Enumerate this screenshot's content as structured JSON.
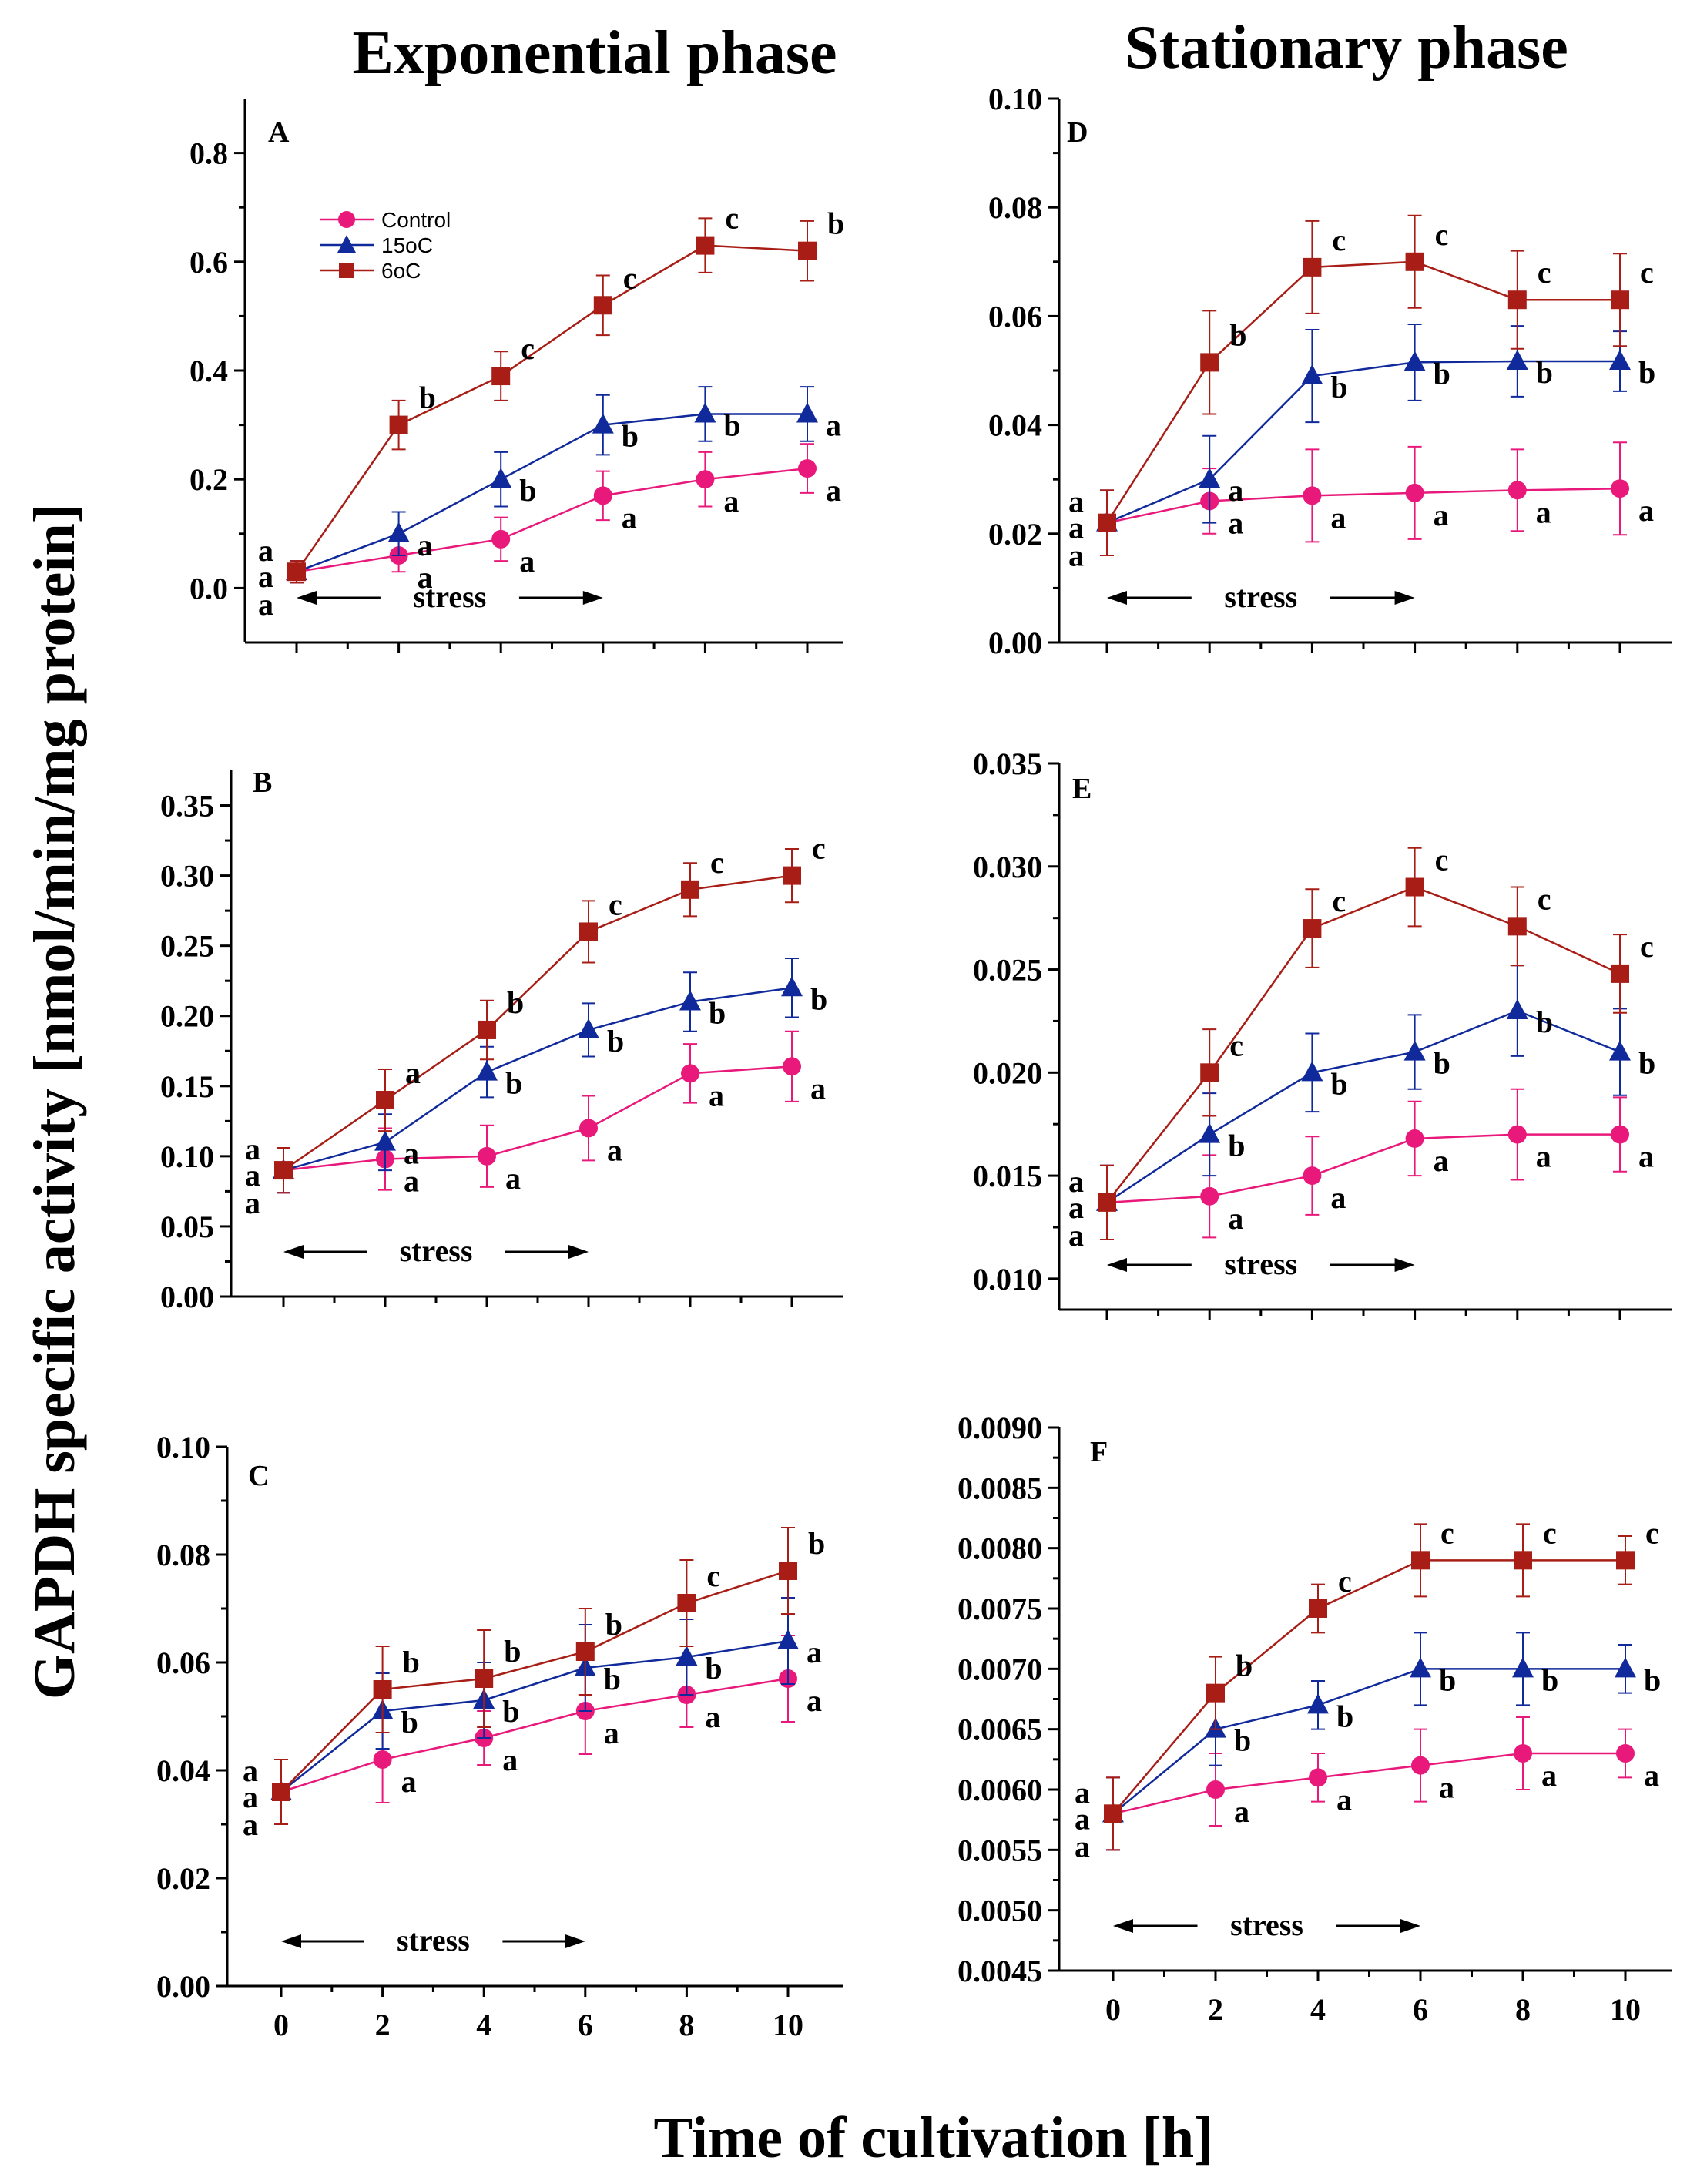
{
  "titles": {
    "left": "Exponential phase",
    "right": "Stationary phase",
    "ylabel": "GAPDH specific activity [nmol/min/mg protein]",
    "xlabel": "Time of cultivation [h]"
  },
  "stress_label": "stress",
  "chart_data": [
    {
      "id": "A",
      "type": "line",
      "letter": "A",
      "x": [
        0,
        2,
        4,
        6,
        8,
        10
      ],
      "ylim": [
        -0.1,
        0.9
      ],
      "yticks": [
        0.0,
        0.2,
        0.4,
        0.6,
        0.8
      ],
      "ytick_labels": [
        "0.0",
        "0.2",
        "0.4",
        "0.6",
        "0.8"
      ],
      "xtick_labels": [],
      "legend": [
        "Control",
        "15oC",
        "6oC"
      ],
      "stress_arrow": [
        0,
        6
      ],
      "series": [
        {
          "name": "Control",
          "values": [
            0.03,
            0.06,
            0.09,
            0.17,
            0.2,
            0.22
          ],
          "errors": [
            0.02,
            0.03,
            0.04,
            0.045,
            0.05,
            0.045
          ],
          "labels": [
            "a",
            "a",
            "a",
            "a",
            "a",
            "a"
          ]
        },
        {
          "name": "15oC",
          "values": [
            0.03,
            0.1,
            0.2,
            0.3,
            0.32,
            0.32
          ],
          "errors": [
            0.02,
            0.04,
            0.05,
            0.055,
            0.05,
            0.05
          ],
          "labels": [
            "a",
            "a",
            "b",
            "b",
            "b",
            "a"
          ]
        },
        {
          "name": "6oC",
          "values": [
            0.03,
            0.3,
            0.39,
            0.52,
            0.63,
            0.62
          ],
          "errors": [
            0.02,
            0.045,
            0.045,
            0.055,
            0.05,
            0.055
          ],
          "labels": [
            "a",
            "b",
            "c",
            "c",
            "c",
            "b"
          ]
        }
      ]
    },
    {
      "id": "B",
      "type": "line",
      "letter": "B",
      "x": [
        0,
        2,
        4,
        6,
        8,
        10
      ],
      "ylim": [
        0.0,
        0.375
      ],
      "yticks": [
        0.0,
        0.05,
        0.1,
        0.15,
        0.2,
        0.25,
        0.3,
        0.35
      ],
      "ytick_labels": [
        "0.00",
        "0.05",
        "0.10",
        "0.15",
        "0.20",
        "0.25",
        "0.30",
        "0.35"
      ],
      "xtick_labels": [],
      "stress_arrow": [
        0,
        6
      ],
      "series": [
        {
          "name": "Control",
          "values": [
            0.09,
            0.098,
            0.1,
            0.12,
            0.159,
            0.164
          ],
          "errors": [
            0.016,
            0.022,
            0.022,
            0.023,
            0.021,
            0.025
          ],
          "labels": [
            "a",
            "a",
            "a",
            "a",
            "a",
            "a"
          ]
        },
        {
          "name": "15oC",
          "values": [
            0.09,
            0.11,
            0.16,
            0.19,
            0.21,
            0.22
          ],
          "errors": [
            0.016,
            0.02,
            0.018,
            0.019,
            0.021,
            0.021
          ],
          "labels": [
            "a",
            "a",
            "b",
            "b",
            "b",
            "b"
          ]
        },
        {
          "name": "6oC",
          "values": [
            0.09,
            0.14,
            0.19,
            0.26,
            0.29,
            0.3
          ],
          "errors": [
            0.016,
            0.022,
            0.021,
            0.022,
            0.019,
            0.019
          ],
          "labels": [
            "a",
            "a",
            "b",
            "c",
            "c",
            "c"
          ]
        }
      ]
    },
    {
      "id": "C",
      "type": "line",
      "letter": "C",
      "x": [
        0,
        2,
        4,
        6,
        8,
        10
      ],
      "ylim": [
        0.0,
        0.1
      ],
      "yticks": [
        0.0,
        0.02,
        0.04,
        0.06,
        0.08,
        0.1
      ],
      "ytick_labels": [
        "0.00",
        "0.02",
        "0.04",
        "0.06",
        "0.08",
        "0.10"
      ],
      "xtick_labels": [
        "0",
        "2",
        "4",
        "6",
        "8",
        "10"
      ],
      "stress_arrow": [
        0,
        6
      ],
      "series": [
        {
          "name": "Control",
          "values": [
            0.036,
            0.042,
            0.046,
            0.051,
            0.054,
            0.057
          ],
          "errors": [
            0.006,
            0.008,
            0.005,
            0.008,
            0.006,
            0.008
          ],
          "labels": [
            "a",
            "a",
            "a",
            "a",
            "a",
            "a"
          ]
        },
        {
          "name": "15oC",
          "values": [
            0.036,
            0.051,
            0.053,
            0.059,
            0.061,
            0.064
          ],
          "errors": [
            0.006,
            0.007,
            0.007,
            0.008,
            0.007,
            0.008
          ],
          "labels": [
            "a",
            "b",
            "b",
            "b",
            "b",
            "a"
          ]
        },
        {
          "name": "6oC",
          "values": [
            0.036,
            0.055,
            0.057,
            0.062,
            0.071,
            0.077
          ],
          "errors": [
            0.006,
            0.008,
            0.009,
            0.008,
            0.008,
            0.008
          ],
          "labels": [
            "a",
            "b",
            "b",
            "b",
            "c",
            "b"
          ]
        }
      ]
    },
    {
      "id": "D",
      "type": "line",
      "letter": "D",
      "x": [
        0,
        2,
        4,
        6,
        8,
        10
      ],
      "ylim": [
        0.0,
        0.1
      ],
      "yticks": [
        0.0,
        0.02,
        0.04,
        0.06,
        0.08,
        0.1
      ],
      "ytick_labels": [
        "0.00",
        "0.02",
        "0.04",
        "0.06",
        "0.08",
        "0.10"
      ],
      "xtick_labels": [],
      "stress_arrow": [
        0,
        6
      ],
      "series": [
        {
          "name": "Control",
          "values": [
            0.022,
            0.026,
            0.027,
            0.0275,
            0.028,
            0.0283
          ],
          "errors": [
            0.006,
            0.006,
            0.0085,
            0.0085,
            0.0075,
            0.0085
          ],
          "labels": [
            "a",
            "a",
            "a",
            "a",
            "a",
            "a"
          ]
        },
        {
          "name": "15oC",
          "values": [
            0.022,
            0.03,
            0.049,
            0.0515,
            0.0517,
            0.0517
          ],
          "errors": [
            0.006,
            0.008,
            0.0085,
            0.007,
            0.0065,
            0.0055
          ],
          "labels": [
            "a",
            "a",
            "b",
            "b",
            "b",
            "b"
          ]
        },
        {
          "name": "6oC",
          "values": [
            0.022,
            0.0515,
            0.069,
            0.07,
            0.063,
            0.063
          ],
          "errors": [
            0.006,
            0.0095,
            0.0085,
            0.0085,
            0.009,
            0.0085
          ],
          "labels": [
            "a",
            "b",
            "c",
            "c",
            "c",
            "c"
          ]
        }
      ]
    },
    {
      "id": "E",
      "type": "line",
      "letter": "E",
      "x": [
        0,
        2,
        4,
        6,
        8,
        10
      ],
      "ylim": [
        0.0085,
        0.035
      ],
      "yticks": [
        0.01,
        0.015,
        0.02,
        0.025,
        0.03,
        0.035
      ],
      "ytick_labels": [
        "0.010",
        "0.015",
        "0.020",
        "0.025",
        "0.030",
        "0.035"
      ],
      "xtick_labels": [],
      "stress_arrow": [
        0,
        6
      ],
      "series": [
        {
          "name": "Control",
          "values": [
            0.0137,
            0.014,
            0.015,
            0.0168,
            0.017,
            0.017
          ],
          "errors": [
            0.0018,
            0.002,
            0.0019,
            0.0018,
            0.0022,
            0.0018
          ],
          "labels": [
            "a",
            "a",
            "a",
            "a",
            "a",
            "a"
          ]
        },
        {
          "name": "15oC",
          "values": [
            0.0137,
            0.017,
            0.02,
            0.021,
            0.023,
            0.021
          ],
          "errors": [
            0.0018,
            0.002,
            0.0019,
            0.0018,
            0.0022,
            0.0021
          ],
          "labels": [
            "a",
            "b",
            "b",
            "b",
            "b",
            "b"
          ]
        },
        {
          "name": "6oC",
          "values": [
            0.0137,
            0.02,
            0.027,
            0.029,
            0.0271,
            0.0248
          ],
          "errors": [
            0.0018,
            0.0021,
            0.0019,
            0.0019,
            0.0019,
            0.0019
          ],
          "labels": [
            "a",
            "c",
            "c",
            "c",
            "c",
            "c"
          ]
        }
      ]
    },
    {
      "id": "F",
      "type": "line",
      "letter": "F",
      "x": [
        0,
        2,
        4,
        6,
        8,
        10
      ],
      "ylim": [
        0.0045,
        0.009
      ],
      "yticks": [
        0.0045,
        0.005,
        0.0055,
        0.006,
        0.0065,
        0.007,
        0.0075,
        0.008,
        0.0085,
        0.009
      ],
      "ytick_labels": [
        "0.0045",
        "0.0050",
        "0.0055",
        "0.0060",
        "0.0065",
        "0.0070",
        "0.0075",
        "0.0080",
        "0.0085",
        "0.0090"
      ],
      "xtick_labels": [
        "0",
        "2",
        "4",
        "6",
        "8",
        "10"
      ],
      "stress_arrow": [
        0,
        6
      ],
      "series": [
        {
          "name": "Control",
          "values": [
            0.0058,
            0.006,
            0.0061,
            0.0062,
            0.0063,
            0.0063
          ],
          "errors": [
            0.0003,
            0.0003,
            0.0002,
            0.0003,
            0.0003,
            0.0002
          ],
          "labels": [
            "a",
            "a",
            "a",
            "a",
            "a",
            "a"
          ]
        },
        {
          "name": "15oC",
          "values": [
            0.0058,
            0.0065,
            0.0067,
            0.007,
            0.007,
            0.007
          ],
          "errors": [
            0.0003,
            0.0003,
            0.0002,
            0.0003,
            0.0003,
            0.0002
          ],
          "labels": [
            "a",
            "b",
            "b",
            "b",
            "b",
            "b"
          ]
        },
        {
          "name": "6oC",
          "values": [
            0.0058,
            0.0068,
            0.0075,
            0.0079,
            0.0079,
            0.0079
          ],
          "errors": [
            0.0003,
            0.0003,
            0.0002,
            0.0003,
            0.0003,
            0.0002
          ],
          "labels": [
            "a",
            "b",
            "c",
            "c",
            "c",
            "c"
          ]
        }
      ]
    }
  ],
  "colors": {
    "control": "#e8197a",
    "t15": "#102a9c",
    "t6": "#a81e16"
  }
}
